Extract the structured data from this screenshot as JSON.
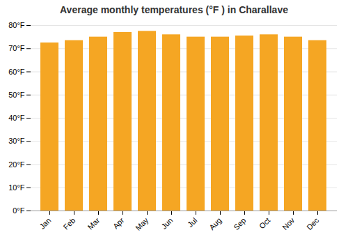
{
  "chart_data": {
    "type": "bar",
    "title": "Average monthly temperatures (°F ) in Charallave",
    "categories": [
      "Jan",
      "Feb",
      "Mar",
      "Apr",
      "May",
      "Jun",
      "Jul",
      "Aug",
      "Sep",
      "Oct",
      "Nov",
      "Dec"
    ],
    "values": [
      72.5,
      73.5,
      75.0,
      77.0,
      77.5,
      76.0,
      75.0,
      75.0,
      75.5,
      76.0,
      75.0,
      73.5
    ],
    "color": "#F5A623",
    "ylim": [
      0,
      80
    ],
    "yticks": [
      {
        "value": 0,
        "label": "0°F"
      },
      {
        "value": 10,
        "label": "10°F"
      },
      {
        "value": 20,
        "label": "20°F"
      },
      {
        "value": 30,
        "label": "30°F"
      },
      {
        "value": 40,
        "label": "40°F"
      },
      {
        "value": 50,
        "label": "50°F"
      },
      {
        "value": 60,
        "label": "60°F"
      },
      {
        "value": 70,
        "label": "70°F"
      },
      {
        "value": 80,
        "label": "80°F"
      }
    ],
    "grid": true
  }
}
